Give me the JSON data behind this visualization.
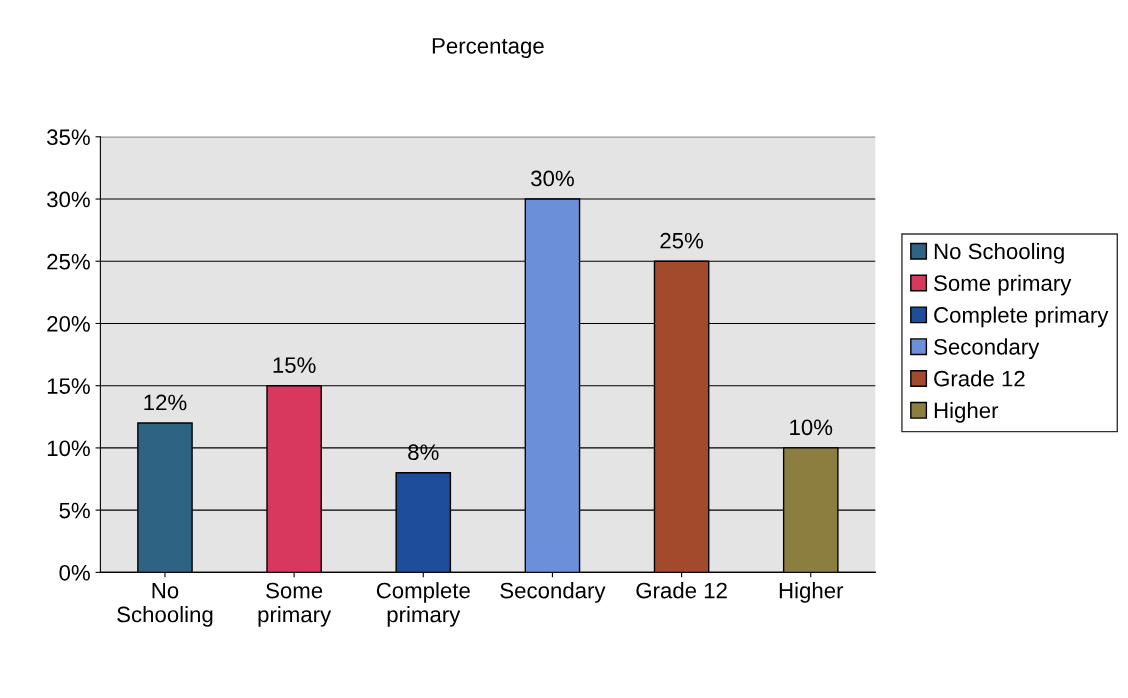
{
  "chart_data": {
    "type": "bar",
    "title": "Percentage",
    "categories": [
      "No\nSchooling",
      "Some\nprimary",
      "Complete\nprimary",
      "Secondary",
      "Grade 12",
      "Higher"
    ],
    "series": [
      {
        "name": "No Schooling",
        "color": "#2f6383",
        "values": [
          12,
          null,
          null,
          null,
          null,
          null
        ],
        "value_labels": [
          "12%",
          null,
          null,
          null,
          null,
          null
        ]
      },
      {
        "name": "Some primary",
        "color": "#d8375e",
        "values": [
          null,
          15,
          null,
          null,
          null,
          null
        ],
        "value_labels": [
          null,
          "15%",
          null,
          null,
          null,
          null
        ]
      },
      {
        "name": "Complete primary",
        "color": "#1d4d9b",
        "values": [
          null,
          null,
          8,
          null,
          null,
          null
        ],
        "value_labels": [
          null,
          null,
          "8%",
          null,
          null,
          null
        ]
      },
      {
        "name": "Secondary",
        "color": "#6b8fd8",
        "values": [
          null,
          null,
          null,
          30,
          null,
          null
        ],
        "value_labels": [
          null,
          null,
          null,
          "30%",
          null,
          null
        ]
      },
      {
        "name": "Grade 12",
        "color": "#a24a2b",
        "values": [
          null,
          null,
          null,
          null,
          25,
          null
        ],
        "value_labels": [
          null,
          null,
          null,
          null,
          "25%",
          null
        ]
      },
      {
        "name": "Higher",
        "color": "#8b7e3e",
        "values": [
          null,
          null,
          null,
          null,
          null,
          10
        ],
        "value_labels": [
          null,
          null,
          null,
          null,
          null,
          "10%"
        ]
      }
    ],
    "ylim": [
      0,
      35
    ],
    "yticks": [
      {
        "value": 0,
        "label": "0%"
      },
      {
        "value": 5,
        "label": "5%"
      },
      {
        "value": 10,
        "label": "10%"
      },
      {
        "value": 15,
        "label": "15%"
      },
      {
        "value": 20,
        "label": "20%"
      },
      {
        "value": 25,
        "label": "25%"
      },
      {
        "value": 30,
        "label": "30%"
      },
      {
        "value": 35,
        "label": "35%"
      }
    ],
    "grid": "y",
    "legend": "right"
  }
}
